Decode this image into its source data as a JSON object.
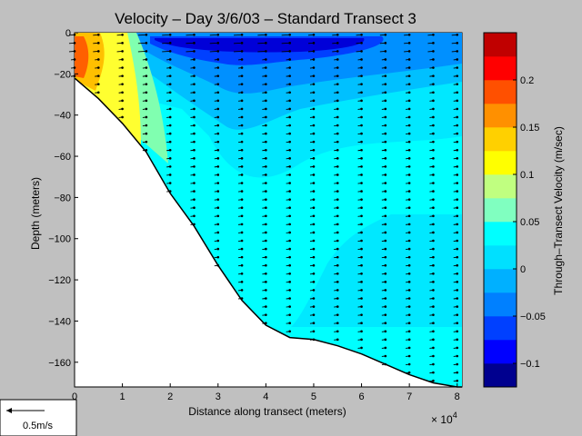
{
  "chart_data": {
    "type": "contour",
    "title": "Velocity – Day 3/6/03 – Standard Transect 3",
    "xlabel": "Distance along transect (meters)",
    "ylabel": "Depth (meters)",
    "x_multiplier_label": "× 10",
    "x_multiplier_exp": "4",
    "xlim": [
      0,
      81000
    ],
    "ylim": [
      -172,
      0
    ],
    "xticks": [
      "0",
      "1",
      "2",
      "3",
      "4",
      "5",
      "6",
      "7",
      "8"
    ],
    "yticks": [
      "0",
      "−20",
      "−40",
      "−60",
      "−80",
      "−100",
      "−120",
      "−140",
      "−160"
    ],
    "grid": false,
    "colorbar": {
      "label": "Through–Transect Velocity (m/sec)",
      "range": [
        -0.125,
        0.25
      ],
      "ticks": [
        "−0.1",
        "−0.05",
        "0",
        "0.05",
        "0.1",
        "0.15",
        "0.2"
      ],
      "colors": [
        "#00008f",
        "#0000ff",
        "#0040ff",
        "#0080ff",
        "#00b0ff",
        "#00e0ff",
        "#00ffff",
        "#80ffc0",
        "#c0ff80",
        "#ffff00",
        "#ffd000",
        "#ff9000",
        "#ff5000",
        "#ff0000",
        "#c00000"
      ]
    },
    "bottom_profile": [
      [
        0,
        -22
      ],
      [
        5000,
        -32
      ],
      [
        10000,
        -44
      ],
      [
        15000,
        -58
      ],
      [
        20000,
        -78
      ],
      [
        25000,
        -94
      ],
      [
        30000,
        -113
      ],
      [
        35000,
        -130
      ],
      [
        40000,
        -142
      ],
      [
        45000,
        -148
      ],
      [
        50000,
        -149
      ],
      [
        55000,
        -152
      ],
      [
        60000,
        -156
      ],
      [
        65000,
        -161
      ],
      [
        70000,
        -166
      ],
      [
        75000,
        -170
      ],
      [
        80000,
        -172
      ],
      [
        81000,
        -172
      ]
    ],
    "station_x": [
      0,
      5000,
      10000,
      15000,
      20000,
      25000,
      30000,
      35000,
      40000,
      45000,
      50000,
      55000,
      60000,
      65000,
      70000,
      75000,
      80000
    ],
    "scale_arrow": {
      "label": "0.5m/s",
      "value": 0.5
    }
  }
}
